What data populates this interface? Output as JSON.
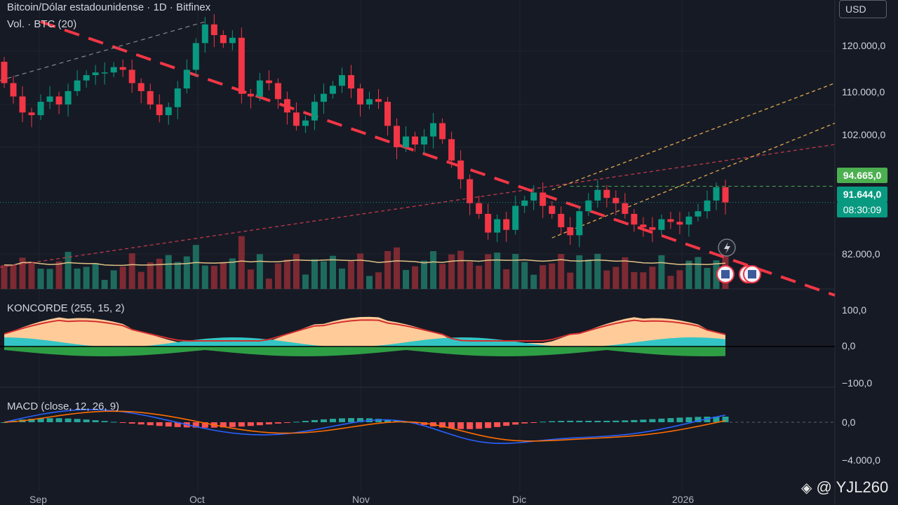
{
  "header": {
    "title": "Bitcoin/Dólar estadounidense · 1D · Bitfinex",
    "volume_label": "Vol. · BTC (20)",
    "koncorde_label": "KONCORDE (255, 15, 2)",
    "macd_label": "MACD (close, 12, 26, 9)"
  },
  "currency_button": "USD",
  "price_axis": {
    "ticks": [
      {
        "label": "120.000,0",
        "value": 120000
      },
      {
        "label": "110.000,0",
        "value": 110000
      },
      {
        "label": "102.000,0",
        "value": 102000
      },
      {
        "label": "82.000,0",
        "value": 82000
      }
    ],
    "tags": [
      {
        "label": "94.665,0",
        "color": "#4caf50"
      },
      {
        "label": "91.644,0",
        "color": "#089981"
      },
      {
        "label": "08:30:09",
        "color": "#089981"
      }
    ]
  },
  "koncorde_axis": {
    "ticks": [
      {
        "label": "100,0",
        "value": 100
      },
      {
        "label": "0,0",
        "value": 0
      },
      {
        "label": "−100,0",
        "value": -100
      }
    ]
  },
  "macd_axis": {
    "ticks": [
      {
        "label": "0,0",
        "value": 0
      },
      {
        "label": "−4.000,0",
        "value": -4000
      }
    ]
  },
  "time_axis": {
    "labels": [
      "Sep",
      "Oct",
      "Nov",
      "Dic",
      "2026"
    ]
  },
  "watermark": "@ YJL260",
  "colors": {
    "up": "#089981",
    "down": "#f23645",
    "trend": "#f23645",
    "channel": "#e0a84e",
    "ma": "#e0c285",
    "macd": "#2962ff",
    "signal": "#ff6d00"
  },
  "chart_data": {
    "type": "candlestick",
    "symbol": "BTCUSD",
    "exchange": "Bitfinex",
    "interval": "1D",
    "x": [
      "Sep",
      "Oct",
      "Nov",
      "Dic",
      "2026"
    ],
    "close_price": [
      114000,
      111500,
      108500,
      108000,
      110500,
      111500,
      110000,
      112500,
      114500,
      115500,
      116000,
      116000,
      117000,
      116500,
      114000,
      112500,
      110000,
      108000,
      109500,
      113000,
      116500,
      121500,
      125000,
      123000,
      121500,
      122500,
      112000,
      111500,
      114500,
      114000,
      111000,
      108500,
      106000,
      107000,
      110500,
      112000,
      113500,
      115500,
      113000,
      110000,
      111000,
      110500,
      106000,
      102000,
      104000,
      102500,
      104000,
      106500,
      103500,
      99500,
      96000,
      91500,
      89500,
      86000,
      88500,
      86500,
      91000,
      92000,
      93500,
      91000,
      89500,
      87000,
      85500,
      90000,
      92000,
      94000,
      92500,
      91500,
      89500,
      87500,
      87000,
      86500,
      88500,
      88000,
      87500,
      89000,
      90000,
      92000,
      94500,
      91644
    ],
    "ylim": [
      79000,
      126500
    ],
    "grid": true,
    "dashed_trendline": {
      "from": [
        4,
        125500
      ],
      "to": [
        79,
        79500
      ]
    },
    "horizontal_level": 94665,
    "volume_ma_period": 20,
    "koncorde": {
      "params": [
        255,
        15,
        2
      ],
      "ylim": [
        -100,
        100
      ]
    },
    "macd": {
      "params": [
        "close",
        12,
        26,
        9
      ],
      "ylim": [
        -5000,
        1500
      ]
    }
  }
}
